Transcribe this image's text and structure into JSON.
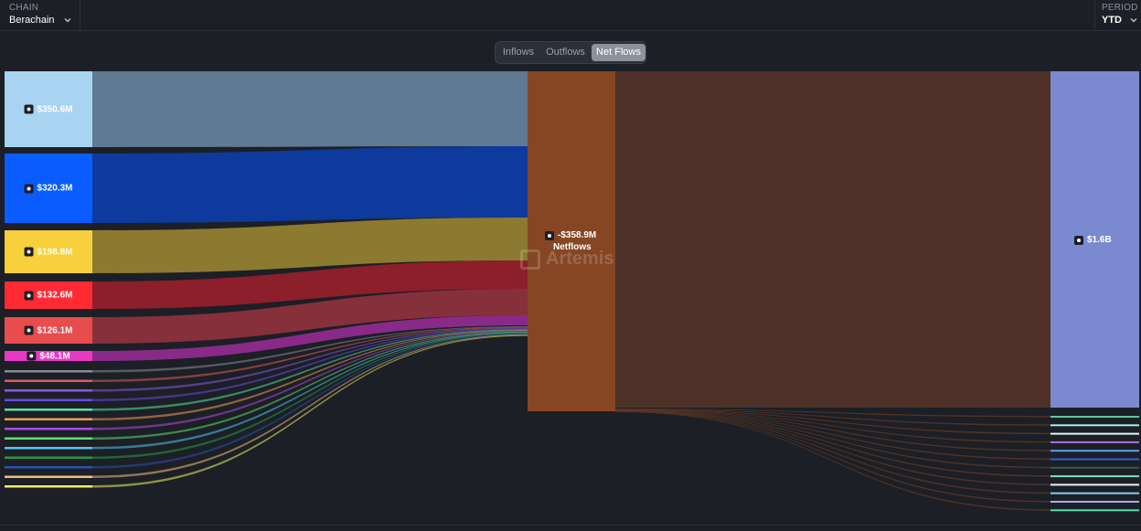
{
  "header": {
    "chain_label": "CHAIN",
    "chain_value": "Berachain",
    "period_label": "PERIOD",
    "period_value": "YTD"
  },
  "tabs": [
    {
      "label": "Inflows",
      "active": false
    },
    {
      "label": "Outflows",
      "active": false
    },
    {
      "label": "Net Flows",
      "active": true
    }
  ],
  "watermark": "Artemis",
  "sankey": {
    "left_nodes": [
      {
        "label": "$350.6M",
        "color": "#a8d4f2",
        "link": "#5f7a92",
        "icon": "coin-icon"
      },
      {
        "label": "$320.3M",
        "color": "#0a5cff",
        "link": "#0d3a9c",
        "icon": "square-icon"
      },
      {
        "label": "$198.8M",
        "color": "#f7d03c",
        "link": "#8c7a30",
        "icon": "diamond-icon"
      },
      {
        "label": "$132.6M",
        "color": "#ff2a34",
        "link": "#8c1f2a",
        "icon": "circle-icon"
      },
      {
        "label": "$126.1M",
        "color": "#e84c4c",
        "link": "#85303a",
        "icon": "triangle-icon"
      },
      {
        "label": "$48.1M",
        "color": "#e838c4",
        "link": "#8a2a88",
        "icon": "spark-icon"
      }
    ],
    "small_left_colors": [
      "#888c94",
      "#e05a5a",
      "#8a5ad8",
      "#6a4ae0",
      "#5ae0a0",
      "#f0a050",
      "#b04ae0",
      "#5ae070",
      "#50c8f0",
      "#2a9a40",
      "#2a50b0",
      "#f0c080",
      "#f0f060"
    ],
    "center_node": {
      "label": "-$358.9M",
      "sub_label": "Netflows",
      "color": "#864624",
      "icon": "wallet-icon"
    },
    "center_link_color": "#4d3128",
    "right_node": {
      "label": "$1.6B",
      "color": "#7b8ad0",
      "icon": "eth-icon"
    },
    "small_right_colors": [
      "#5ac8a0",
      "#a8f0e8",
      "#e8f0f8",
      "#b070e0",
      "#60a0f0",
      "#3060e0",
      "#306040",
      "#80e0c0",
      "#f0f0f8",
      "#80d0f0",
      "#a8b0f0",
      "#50e0b0"
    ]
  }
}
